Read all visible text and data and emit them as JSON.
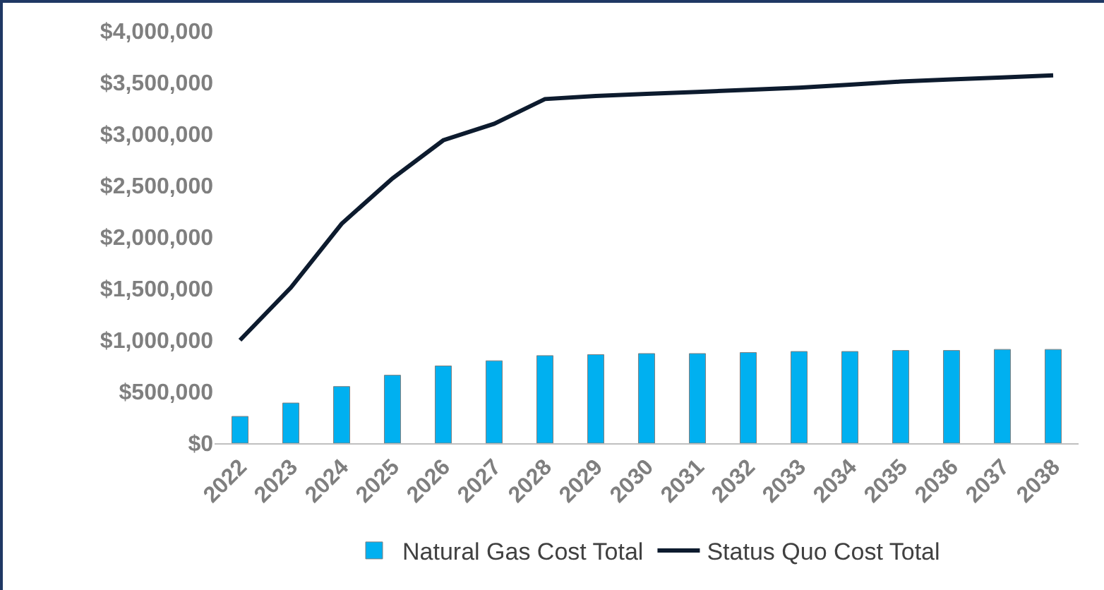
{
  "chart_data": {
    "type": "bar",
    "categories": [
      "2022",
      "2023",
      "2024",
      "2025",
      "2026",
      "2027",
      "2028",
      "2029",
      "2030",
      "2031",
      "2032",
      "2033",
      "2034",
      "2035",
      "2036",
      "2037",
      "2038"
    ],
    "series": [
      {
        "name": "Natural Gas Cost Total",
        "color": "#00b0f0",
        "values": [
          260000,
          390000,
          550000,
          660000,
          750000,
          800000,
          850000,
          860000,
          870000,
          870000,
          880000,
          890000,
          890000,
          900000,
          900000,
          910000,
          910000
        ]
      },
      {
        "name": "Status Quo Cost Total",
        "type": "line",
        "color": "#0d1b2e",
        "values": [
          1000000,
          1510000,
          2130000,
          2570000,
          2940000,
          3100000,
          3340000,
          3370000,
          3390000,
          3410000,
          3430000,
          3450000,
          3480000,
          3510000,
          3530000,
          3550000,
          3570000
        ]
      }
    ],
    "ylim": [
      0,
      4000000
    ],
    "yticks": [
      {
        "value": 0,
        "label": "$0"
      },
      {
        "value": 500000,
        "label": "$500,000"
      },
      {
        "value": 1000000,
        "label": "$1,000,000"
      },
      {
        "value": 1500000,
        "label": "$1,500,000"
      },
      {
        "value": 2000000,
        "label": "$2,000,000"
      },
      {
        "value": 2500000,
        "label": "$2,500,000"
      },
      {
        "value": 3000000,
        "label": "$3,000,000"
      },
      {
        "value": 3500000,
        "label": "$3,500,000"
      },
      {
        "value": 4000000,
        "label": "$4,000,000"
      }
    ],
    "grid": false,
    "legend": "bottom",
    "marker": "none",
    "line_style": "solid"
  }
}
